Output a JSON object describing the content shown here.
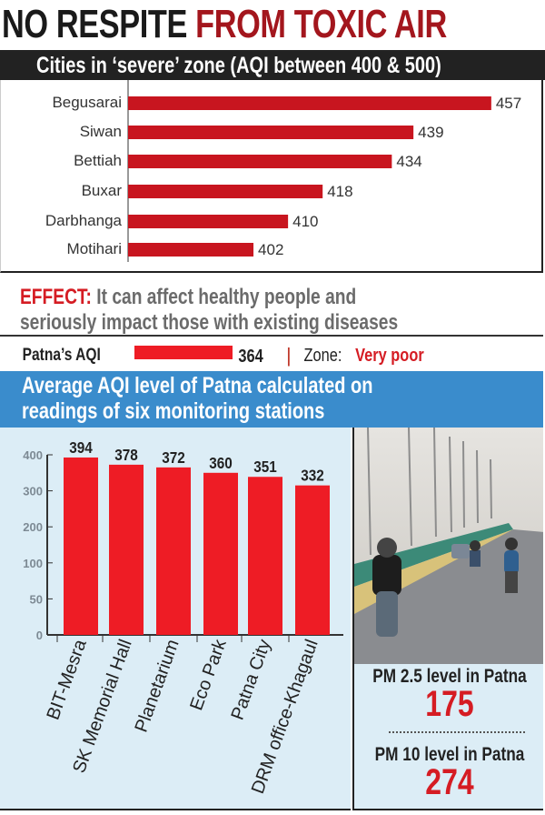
{
  "title": {
    "part1": "NO RESPITE",
    "part2": "FROM TOXIC AIR"
  },
  "severe_header": "Cities in ‘severe’ zone (AQI between 400 & 500)",
  "effect": {
    "label": "EFFECT:",
    "line1": " It can affect healthy people and",
    "line2": "seriously impact those with existing diseases"
  },
  "patna": {
    "label": "Patna’s AQI",
    "value": "364",
    "separator": "|",
    "zone_label": "Zone:",
    "zone_value": "Very poor"
  },
  "stations_header": {
    "line1": "Average AQI level of Patna calculated on",
    "line2": "readings of six monitoring stations"
  },
  "pm": {
    "pm25_label": "PM 2.5 level in Patna",
    "pm25_value": "175",
    "pm10_label": "PM 10 level in Patna",
    "pm10_value": "274"
  },
  "colors": {
    "bar": "#c8151f",
    "bar_bright": "#ee1c25",
    "header_blue": "#3a8ccc",
    "panel_bg": "#dcedf6",
    "title_red": "#a3161d"
  },
  "chart_data": [
    {
      "type": "bar",
      "orientation": "horizontal",
      "title": "Cities in ‘severe’ zone (AQI between 400 & 500)",
      "categories": [
        "Begusarai",
        "Siwan",
        "Bettiah",
        "Buxar",
        "Darbhanga",
        "Motihari"
      ],
      "values": [
        457,
        439,
        434,
        418,
        410,
        402
      ],
      "value_labels": [
        "457",
        "439",
        "434",
        "418",
        "410",
        "402"
      ]
    },
    {
      "type": "bar",
      "orientation": "vertical",
      "title": "Average AQI level of Patna calculated on readings of six monitoring stations",
      "categories": [
        "BIT-Mesra",
        "SK Memorial Hall",
        "Planetarium",
        "Eco Park",
        "Patna City",
        "DRM office-Khagaul"
      ],
      "values": [
        394,
        378,
        372,
        360,
        351,
        332
      ],
      "value_labels": [
        "394",
        "378",
        "372",
        "360",
        "351",
        "332"
      ],
      "y_ticks": [
        "400",
        "300",
        "200",
        "100",
        "50",
        "0"
      ],
      "grid": false
    }
  ]
}
